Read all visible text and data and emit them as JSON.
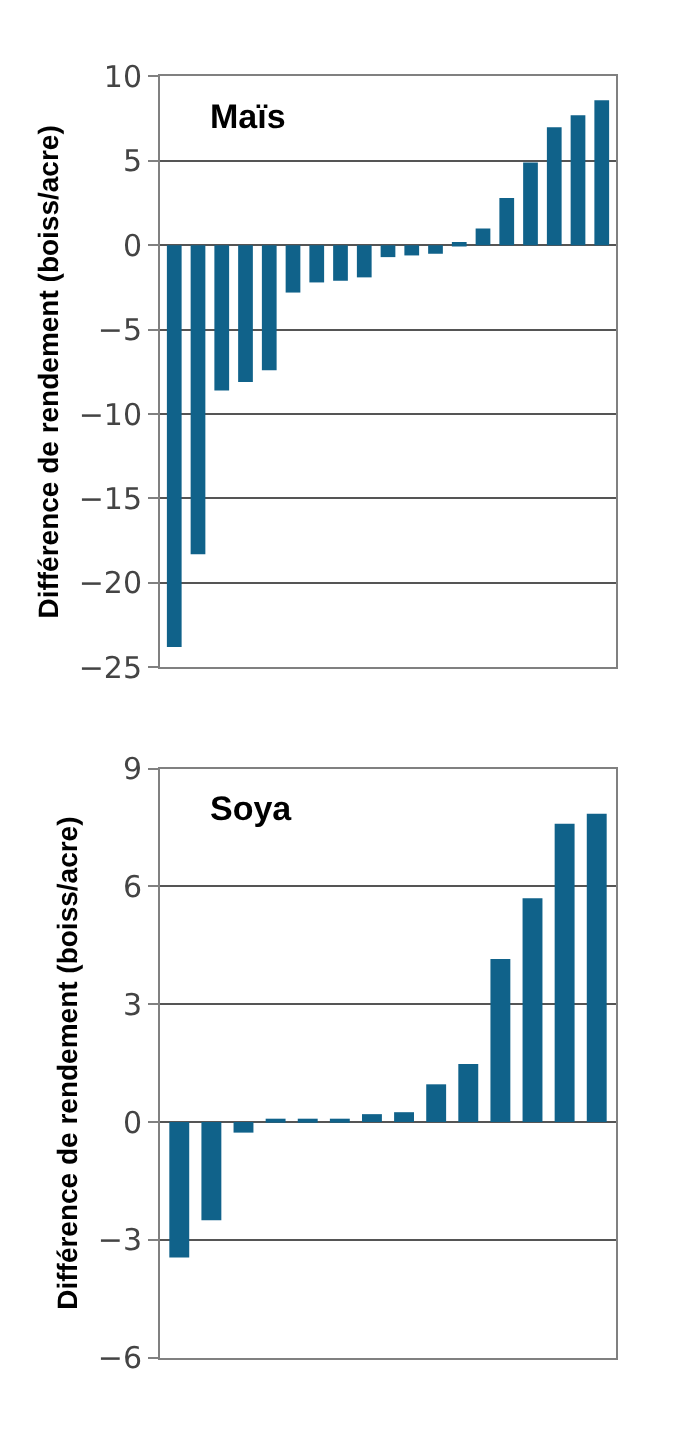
{
  "chart_data": [
    {
      "type": "bar",
      "title": "Maïs",
      "ylabel": "Différence de rendement (boiss/acre)",
      "categories": [
        null,
        null,
        null,
        null,
        null,
        null,
        null,
        null,
        null,
        null,
        null,
        null,
        null,
        null,
        null,
        null,
        null,
        null,
        null
      ],
      "values": [
        -23.8,
        -18.3,
        -8.6,
        -8.1,
        -7.4,
        -2.8,
        -2.2,
        -2.1,
        -1.9,
        -0.7,
        -0.6,
        -0.5,
        0.2,
        1.0,
        2.8,
        4.9,
        7.0,
        7.7,
        8.6
      ],
      "color": "#10628a",
      "ylim": [
        -25,
        10
      ],
      "yticks": [
        -25,
        -20,
        -15,
        -10,
        -5,
        0,
        5,
        10
      ],
      "grid": "y",
      "tick_labels": "y"
    },
    {
      "type": "bar",
      "title": "Soya",
      "ylabel": "Différence de rendement (boiss/acre)",
      "categories": [
        null,
        null,
        null,
        null,
        null,
        null,
        null,
        null,
        null,
        null,
        null,
        null,
        null,
        null
      ],
      "values": [
        -3.45,
        -2.5,
        -0.27,
        0.08,
        0.08,
        0.08,
        0.2,
        0.25,
        0.96,
        1.48,
        4.15,
        5.7,
        7.6,
        7.85
      ],
      "color": "#10628a",
      "ylim": [
        -6,
        9
      ],
      "yticks": [
        -6,
        -3,
        0,
        3,
        6,
        9
      ],
      "grid": "y",
      "tick_labels": "y"
    }
  ]
}
